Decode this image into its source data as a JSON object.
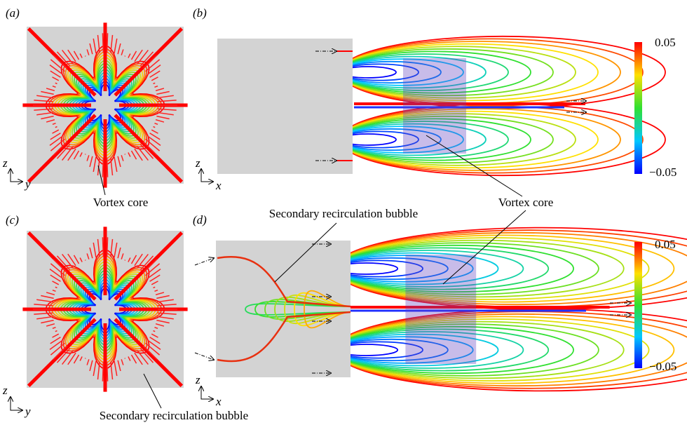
{
  "panels": [
    {
      "label": "(a)",
      "axes": [
        "z",
        "y"
      ]
    },
    {
      "label": "(b)",
      "axes": [
        "z",
        "x"
      ]
    },
    {
      "label": "(c)",
      "axes": [
        "z",
        "y"
      ]
    },
    {
      "label": "(d)",
      "axes": [
        "z",
        "x"
      ]
    }
  ],
  "annotations": [
    "Vortex core",
    "Vortex core",
    "Secondary recirculation bubble",
    "Secondary recirculation bubble"
  ],
  "colorbars": [
    {
      "max": "0.05",
      "min": "−0.05"
    },
    {
      "max": "0.05",
      "min": "−0.05"
    }
  ]
}
